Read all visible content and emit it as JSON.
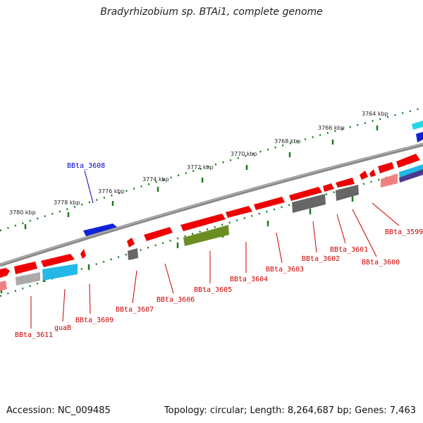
{
  "title": "Bradyrhizobium sp. BTAi1, complete genome",
  "footer": {
    "accession": "Accession: NC_009485",
    "summary": "Topology: circular; Length: 8,264,687 bp; Genes: 7,463"
  },
  "colors": {
    "forward_gene": "#ee0000",
    "forward_pseudo": "#1020dd",
    "reverse_gene": "#ee0000",
    "rna": "#22b8e8",
    "hypothetical": "#777777",
    "other": "#6b8e23",
    "backbone": "#888888",
    "ticks": "#1f7a1f",
    "label_forward": "#0000cc",
    "label_reverse": "#cc0000"
  },
  "scale_ticks": [
    "3780 kbp",
    "3778 kbp",
    "3776 kbp",
    "3774 kbp",
    "3772 kbp",
    "3770 kbp",
    "3768 kbp",
    "3766 kbp",
    "3764 kbp"
  ],
  "gene_labels": {
    "outer": [
      "BBta_3608"
    ],
    "inner": [
      "BBta_3611",
      "guaB",
      "BBta_3609",
      "BBta_3607",
      "BBta_3606",
      "BBta_3605",
      "BBta_3604",
      "BBta_3603",
      "BBta_3602",
      "BBta_3601",
      "BBta_3600",
      "BBta_3599"
    ]
  }
}
